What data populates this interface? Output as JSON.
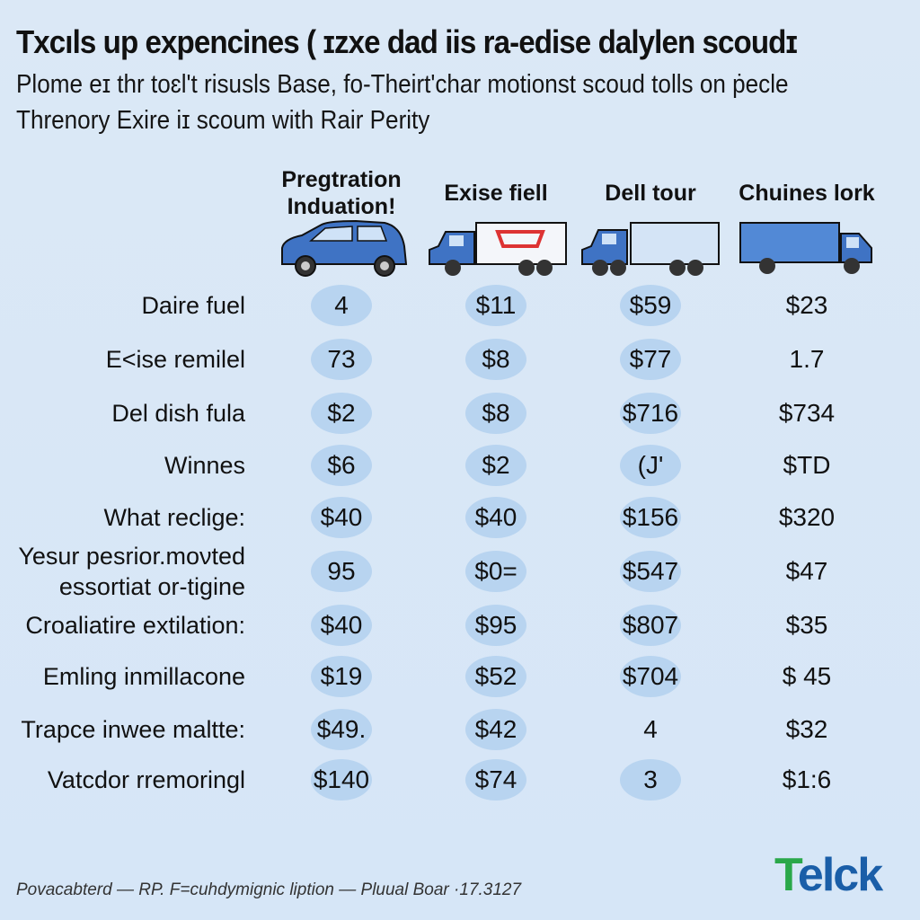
{
  "title": "Txcıls up expencines ( ɪzxe dad iis ra-edise dalylen scoudɪ",
  "subtitle_lines": [
    "Plome eɪ thr toɛl't risusls Base, fo-Theirt'char motionst scoud tolls on ṗecle",
    "Threnory Exire iɪ scoum with Rair Perity"
  ],
  "columns": [
    {
      "label": "Pregtration Induation!",
      "icon": "minivan-icon"
    },
    {
      "label": "Exise fiell",
      "icon": "box-truck-logo-icon"
    },
    {
      "label": "Dell tour",
      "icon": "semi-truck-icon"
    },
    {
      "label": "Chuines lork",
      "icon": "cargo-truck-icon"
    }
  ],
  "rows": [
    {
      "label": "Daire fuel",
      "values": [
        "4",
        "$11",
        "$59",
        "$23"
      ]
    },
    {
      "label": "E<ise remilel",
      "values": [
        "73",
        "$8",
        "$77",
        "1.7"
      ]
    },
    {
      "label": "Del dish fula",
      "values": [
        "$2",
        "$8",
        "$716",
        "$734"
      ]
    },
    {
      "label": "Winnes",
      "values": [
        "$6",
        "$2",
        "(J'",
        "$TD"
      ]
    },
    {
      "label": "What reclige:",
      "values": [
        "$40",
        "$40",
        "$156",
        "$320"
      ]
    },
    {
      "label": "Yesur pesrior.mονted essortiat or-tigine",
      "values": [
        "95",
        "$0=",
        "$547",
        "$47"
      ]
    },
    {
      "label": "Croaliatire extilation:",
      "values": [
        "$40",
        "$95",
        "$807",
        "$35"
      ]
    },
    {
      "label": "Emling inmillacone",
      "values": [
        "$19",
        "$52",
        "$704",
        "$ 45"
      ]
    },
    {
      "label": "Trapce inwee maltte:",
      "values": [
        "$49.",
        "$42",
        "4",
        "$32"
      ]
    },
    {
      "label": "Vatcdor rremoringl",
      "values": [
        "$140",
        "$74",
        "3",
        "$1:6"
      ]
    }
  ],
  "highlight_color": "#b8d4f0",
  "footer": "Povacabterd — RP. F=cuhdymignic liption — Pluual Boar ·17.3127",
  "logo": {
    "mark": "T",
    "text": "elck"
  }
}
